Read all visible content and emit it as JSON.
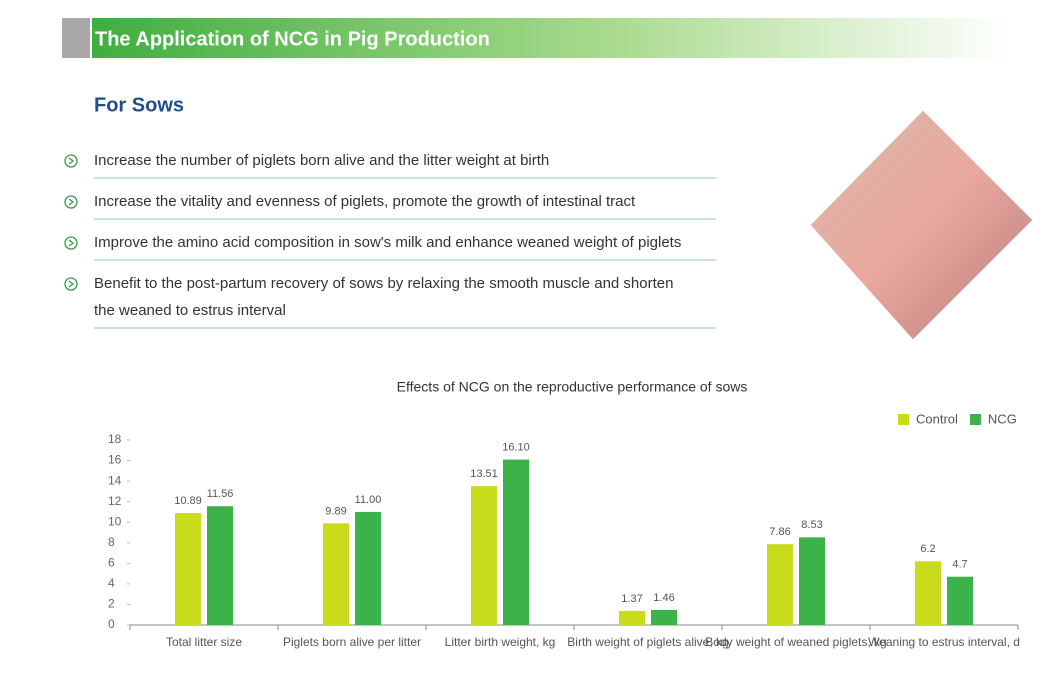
{
  "header": {
    "title": "The Application of NCG in Pig Production"
  },
  "section": {
    "title": "For Sows",
    "bullets": [
      [
        "Increase the number of piglets born alive and the litter weight at birth"
      ],
      [
        "Increase the vitality and evenness of piglets, promote the growth of intestinal tract"
      ],
      [
        "Improve the amino acid composition in sow's milk and enhance weaned weight of piglets"
      ],
      [
        "Benefit to the post-partum recovery of sows by relaxing the smooth muscle and shorten",
        "the weaned to estrus interval"
      ]
    ]
  },
  "chart_data": {
    "type": "bar",
    "title": "Effects of NCG on the reproductive performance of sows",
    "categories": [
      "Total litter size",
      "Piglets born alive per litter",
      "Litter birth weight, kg",
      "Birth weight of piglets alive, kg",
      "Body weight of weaned piglets, kg",
      "Weaning to estrus interval, d"
    ],
    "series": [
      {
        "name": "Control",
        "color": "#c9dc1c",
        "values": [
          10.89,
          9.89,
          13.51,
          1.37,
          7.86,
          6.2
        ],
        "value_labels": [
          "10.89",
          "9.89",
          "13.51",
          "1.37",
          "7.86",
          "6.2"
        ]
      },
      {
        "name": "NCG",
        "color": "#3cb24a",
        "values": [
          11.56,
          11.0,
          16.1,
          1.46,
          8.53,
          4.7
        ],
        "value_labels": [
          "11.56",
          "11.00",
          "16.10",
          "1.46",
          "8.53",
          "4.7"
        ]
      }
    ],
    "ylim": [
      0,
      18
    ],
    "yticks": [
      0,
      2,
      4,
      6,
      8,
      10,
      12,
      14,
      16,
      18
    ],
    "grid": false,
    "legend": "top-right"
  }
}
